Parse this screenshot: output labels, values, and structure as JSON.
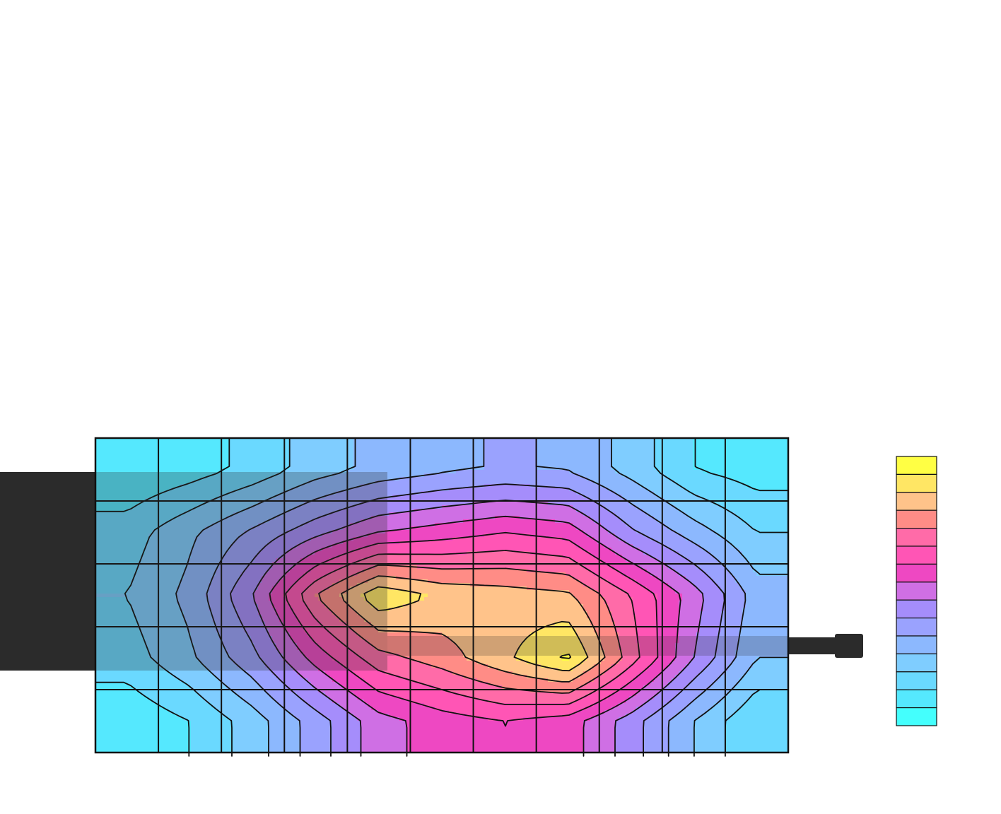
{
  "chart_data": {
    "type": "heatmap",
    "title": "",
    "xlabel": "",
    "ylabel": "",
    "grid": true,
    "legend_placement": "right",
    "legend": {
      "levels": 15,
      "colors_top_to_bottom": [
        "#ffff44",
        "#ffe664",
        "#ffc38a",
        "#ff8c86",
        "#ff6ba8",
        "#ff55b5",
        "#ee48c2",
        "#cf6fe4",
        "#a58dfb",
        "#9aa2fe",
        "#8cb8fe",
        "#7fcdff",
        "#6ad9ff",
        "#55e8fe",
        "#44fffd"
      ]
    },
    "grid_columns": 11,
    "grid_rows": 5,
    "contour_levels": [
      1,
      2,
      3,
      4,
      5,
      6,
      7,
      8,
      9,
      10,
      11,
      12,
      13,
      14
    ],
    "values": [
      [
        1.0,
        1.5,
        2.3,
        3.5,
        4.3,
        4.8,
        5.1,
        4.9,
        3.6,
        2.0,
        1.5
      ],
      [
        2.5,
        3.8,
        5.2,
        6.7,
        8.0,
        8.5,
        9.0,
        8.6,
        6.2,
        4.5,
        3.0
      ],
      [
        3.0,
        4.3,
        7.0,
        11.0,
        13.8,
        12.8,
        12.5,
        12.2,
        10.0,
        7.5,
        4.5
      ],
      [
        2.5,
        3.8,
        5.7,
        8.4,
        10.6,
        11.5,
        12.8,
        14.2,
        10.5,
        7.0,
        4.0
      ],
      [
        1.2,
        2.0,
        3.5,
        5.5,
        7.6,
        8.5,
        9.0,
        8.5,
        6.5,
        4.0,
        2.0
      ]
    ],
    "overlay_regions": [
      {
        "name": "probe-body",
        "color": "#2b2b2b"
      },
      {
        "name": "probe-cable",
        "color": "#2b2b2b"
      }
    ]
  }
}
